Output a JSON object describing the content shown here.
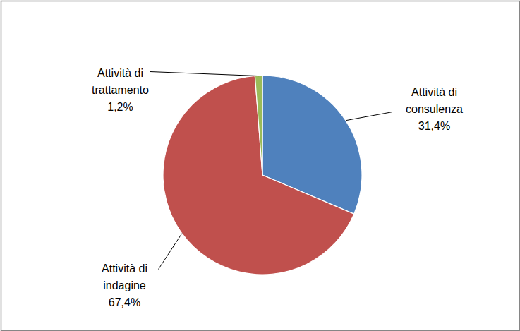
{
  "chart_data": {
    "type": "pie",
    "categories": [
      "Attività di consulenza",
      "Attività di indagine",
      "Attività di trattamento"
    ],
    "values": [
      31.4,
      67.4,
      1.2
    ],
    "value_labels": [
      "31,4%",
      "67,4%",
      "1,2%"
    ],
    "colors": [
      "#4f81bd",
      "#c0504d",
      "#9bbb59"
    ],
    "data_labels": true
  }
}
